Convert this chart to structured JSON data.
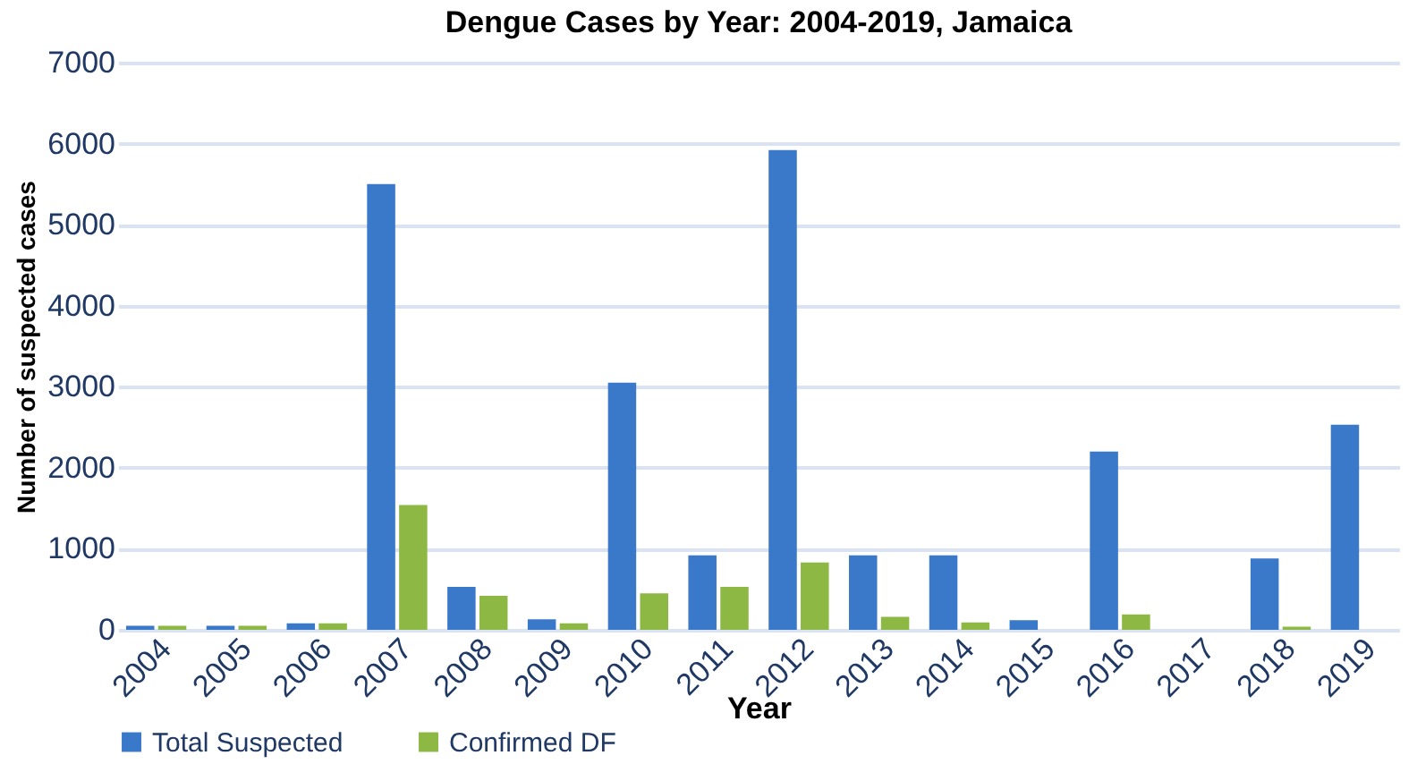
{
  "chart_data": {
    "type": "bar",
    "title": "Dengue Cases by Year: 2004-2019, Jamaica",
    "xlabel": "Year",
    "ylabel": "Number of  suspected cases",
    "categories": [
      "2004",
      "2005",
      "2006",
      "2007",
      "2008",
      "2009",
      "2010",
      "2011",
      "2012",
      "2013",
      "2014",
      "2015",
      "2016",
      "2017",
      "2018",
      "2019"
    ],
    "series": [
      {
        "name": "Total Suspected",
        "color": "#3a78c9",
        "values": [
          50,
          50,
          80,
          5500,
          530,
          130,
          3050,
          920,
          5920,
          920,
          920,
          120,
          2200,
          0,
          880,
          2530
        ]
      },
      {
        "name": "Confirmed DF",
        "color": "#8db843",
        "values": [
          50,
          50,
          80,
          1540,
          420,
          80,
          450,
          530,
          830,
          160,
          90,
          0,
          190,
          0,
          40,
          0
        ]
      }
    ],
    "ylim": [
      0,
      7000
    ],
    "yticks": [
      0,
      1000,
      2000,
      3000,
      4000,
      5000,
      6000,
      7000
    ],
    "grid": "y",
    "legend": "bottom"
  }
}
